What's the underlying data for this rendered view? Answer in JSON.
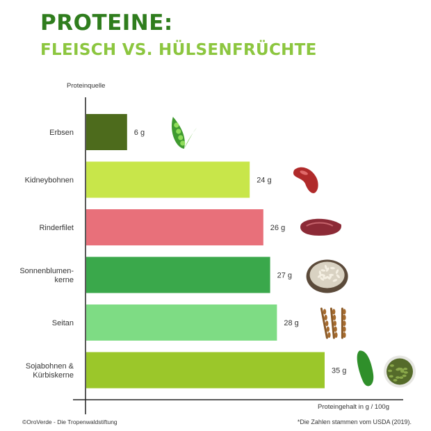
{
  "header": {
    "title": "PROTEINE:",
    "subtitle": "FLEISCH VS. HÜLSENFRÜCHTE"
  },
  "footer": {
    "credit": "©OroVerde - Die Tropenwaldstiftung",
    "source": "*Die Zahlen stammen vom USDA (2019)."
  },
  "colors": {
    "title": "#2f7d1d",
    "subtitle": "#8cc63f"
  },
  "chart_data": {
    "type": "bar",
    "orientation": "horizontal",
    "title": "PROTEINE:",
    "subtitle": "FLEISCH VS. HÜLSENFRÜCHTE",
    "ylabel": "Proteinquelle",
    "xlabel": "Proteingehalt in g / 100g",
    "unit": "g",
    "grid": false,
    "legend": "none",
    "categories": [
      [
        "Erbsen"
      ],
      [
        "Kidneybohnen"
      ],
      [
        "Rinderfilet"
      ],
      [
        "Sonnenblumen-",
        "kerne"
      ],
      [
        "Seitan"
      ],
      [
        "Sojabohnen &",
        "Kürbiskerne"
      ]
    ],
    "values": [
      6,
      24,
      26,
      27,
      28,
      35
    ],
    "value_labels": [
      "6 g",
      "24 g",
      "26 g",
      "27 g",
      "28 g",
      "35 g"
    ],
    "bar_colors": [
      "#4d6b1c",
      "#c8e64a",
      "#e8707a",
      "#3aa84b",
      "#7edc84",
      "#9bc72a"
    ],
    "icons": [
      "pea-pod-icon",
      "kidney-bean-icon",
      "beef-steak-icon",
      "sunflower-seeds-bowl-icon",
      "wheat-ears-icon",
      "soybean-pumpkin-seeds-icon"
    ],
    "xlim": [
      0,
      40
    ]
  }
}
